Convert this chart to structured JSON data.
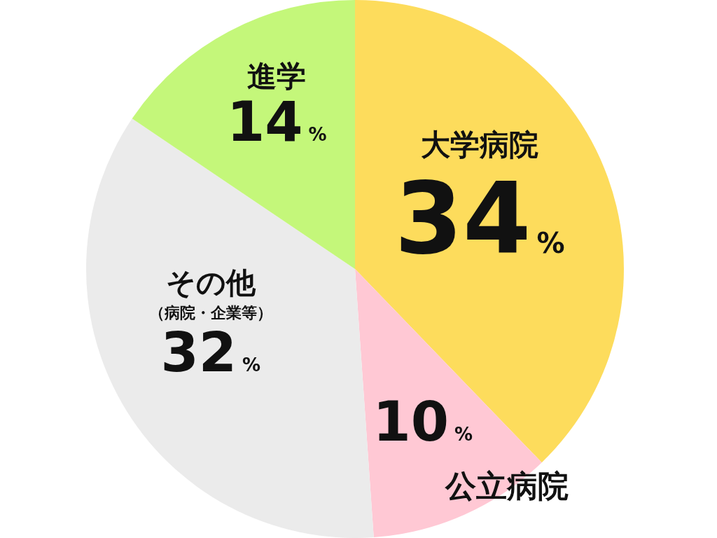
{
  "chart_data": {
    "type": "pie",
    "categories": [
      "大学病院",
      "公立病院",
      "その他（病院・企業等）",
      "進学"
    ],
    "values": [
      34,
      10,
      32,
      14
    ],
    "value_labels": [
      "34%",
      "10%",
      "32%",
      "14%"
    ],
    "colors": [
      "#fddc5c",
      "#ffc8d4",
      "#ebebeb",
      "#c4f77a"
    ]
  }
}
